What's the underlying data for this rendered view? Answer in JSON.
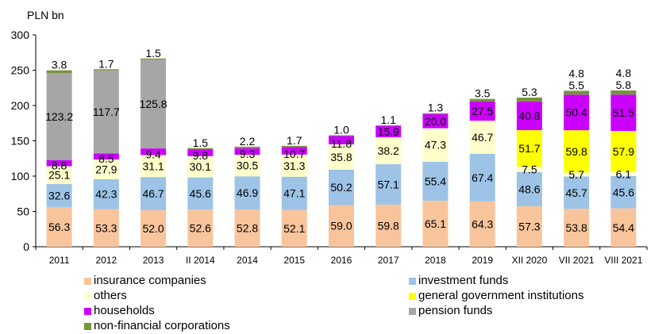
{
  "chart_data": {
    "type": "bar",
    "stacked": true,
    "unit_label": "PLN bn",
    "ylim": [
      0,
      300
    ],
    "yticks": [
      0,
      50,
      100,
      150,
      200,
      250,
      300
    ],
    "categories": [
      "2011",
      "2012",
      "2013",
      "II 2014",
      "2014",
      "2015",
      "2016",
      "2017",
      "2018",
      "2019",
      "XII 2020",
      "VII 2021",
      "VIII 2021"
    ],
    "series": [
      {
        "name": "insurance companies",
        "color": "#F8C49C",
        "values": [
          56.3,
          53.3,
          52.0,
          52.6,
          52.8,
          52.1,
          59.0,
          59.8,
          65.1,
          64.3,
          57.3,
          53.8,
          54.4
        ],
        "labels": [
          "56.3",
          "53.3",
          "52.0",
          "52.6",
          "52.8",
          "52.1",
          "59.0",
          "59.8",
          "65.1",
          "64.3",
          "57.3",
          "53.8",
          "54.4"
        ]
      },
      {
        "name": "investment funds",
        "color": "#9DC3E6",
        "values": [
          32.6,
          42.3,
          46.7,
          45.6,
          46.9,
          47.1,
          50.2,
          57.1,
          55.4,
          67.4,
          48.6,
          45.7,
          45.6
        ],
        "labels": [
          "32.6",
          "42.3",
          "46.7",
          "45.6",
          "46.9",
          "47.1",
          "50.2",
          "57.1",
          "55.4",
          "67.4",
          "48.6",
          "45.7",
          "45.6"
        ]
      },
      {
        "name": "others",
        "color": "#FFFFCC",
        "values": [
          25.1,
          27.9,
          31.1,
          30.1,
          30.5,
          31.3,
          35.8,
          38.2,
          47.3,
          46.7,
          7.5,
          5.7,
          6.1
        ],
        "labels": [
          "25.1",
          "27.9",
          "31.1",
          "30.1",
          "30.5",
          "31.3",
          "35.8",
          "38.2",
          "47.3",
          "46.7",
          "7.5",
          "5.7",
          "6.1"
        ]
      },
      {
        "name": "general government institutions",
        "color": "#FFFF00",
        "values": [
          0,
          0,
          0,
          0,
          0,
          0,
          0,
          0,
          0,
          0,
          51.7,
          59.8,
          57.9
        ],
        "labels": [
          "",
          "",
          "",
          "",
          "",
          "",
          "",
          "",
          "",
          "",
          "51.7",
          "59.8",
          "57.9"
        ]
      },
      {
        "name": "households",
        "color": "#CC00FF",
        "values": [
          8.8,
          8.5,
          9.4,
          9.8,
          9.3,
          10.7,
          11.8,
          15.9,
          20.0,
          27.5,
          40.8,
          50.4,
          51.5
        ],
        "labels": [
          "8.8",
          "8.5",
          "9.4",
          "9.8",
          "9.3",
          "10.7",
          "11.8",
          "15.9",
          "20.0",
          "27.5",
          "40.8",
          "50.4",
          "51.5"
        ]
      },
      {
        "name": "pension funds",
        "color": "#A6A6A6",
        "values": [
          123.2,
          117.7,
          125.8,
          0,
          0,
          0,
          0,
          0,
          0,
          0,
          0,
          0,
          0
        ],
        "labels": [
          "123.2",
          "117.7",
          "125.8",
          "",
          "",
          "",
          "",
          "",
          "",
          "",
          "",
          "",
          ""
        ]
      },
      {
        "name": "non-financial corporations",
        "color": "#77933C",
        "values": [
          3.8,
          1.7,
          1.5,
          1.5,
          2.2,
          1.7,
          1.0,
          1.1,
          1.3,
          3.5,
          5.3,
          5.5,
          5.8
        ],
        "labels": [
          "3.8",
          "1.7",
          "1.5",
          "1.5",
          "2.2",
          "1.7",
          "1.0",
          "1.1",
          "1.3",
          "3.5",
          "5.3",
          "5.5",
          "5.8"
        ]
      }
    ],
    "extra_top_labels": [
      "",
      "",
      "",
      "",
      "",
      "",
      "",
      "",
      "",
      "",
      "",
      "4.8",
      "4.8"
    ],
    "legend": {
      "position": "bottom",
      "items": [
        {
          "label": "insurance companies",
          "color": "#F8C49C"
        },
        {
          "label": "investment funds",
          "color": "#9DC3E6"
        },
        {
          "label": "others",
          "color": "#FFFFCC"
        },
        {
          "label": "general government institutions",
          "color": "#FFFF00"
        },
        {
          "label": "households",
          "color": "#CC00FF"
        },
        {
          "label": "pension funds",
          "color": "#A6A6A6"
        },
        {
          "label": "non-financial corporations",
          "color": "#77933C"
        }
      ]
    },
    "grid": false
  }
}
